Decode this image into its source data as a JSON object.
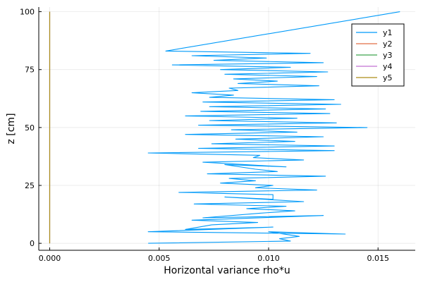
{
  "chart_data": {
    "type": "line",
    "xlabel": "Horizontal variance rho*u",
    "ylabel": "z [cm]",
    "xlim": [
      -0.0005,
      0.0167
    ],
    "ylim": [
      -3,
      102
    ],
    "xticks": [
      0.0,
      0.005,
      0.01,
      0.015
    ],
    "xtick_labels": [
      "0.000",
      "0.005",
      "0.010",
      "0.015"
    ],
    "yticks": [
      0,
      25,
      50,
      75,
      100
    ],
    "ytick_labels": [
      "0",
      "25",
      "50",
      "75",
      "100"
    ],
    "grid": true,
    "legend_position": "top-right",
    "series": [
      {
        "name": "y1",
        "color": "#009AF9",
        "x": [
          0.0045,
          0.011,
          0.0105,
          0.0114,
          0.01,
          0.0135,
          0.0045,
          0.0102,
          0.0062,
          0.0074,
          0.0095,
          0.0065,
          0.0125,
          0.007,
          0.0096,
          0.0112,
          0.009,
          0.0108,
          0.0066,
          0.0116,
          0.008,
          0.0102,
          0.0102,
          0.0059,
          0.0122,
          0.0094,
          0.0102,
          0.0078,
          0.0094,
          0.0082,
          0.0126,
          0.0072,
          0.0104,
          0.0094,
          0.008,
          0.0108,
          0.007,
          0.0116,
          0.0093,
          0.0096,
          0.0045,
          0.013,
          0.0068,
          0.013,
          0.0074,
          0.0112,
          0.0085,
          0.0125,
          0.0062,
          0.0113,
          0.0083,
          0.0145,
          0.0068,
          0.0131,
          0.0073,
          0.0113,
          0.0062,
          0.0128,
          0.0069,
          0.0126,
          0.0073,
          0.0133,
          0.007,
          0.013,
          0.0073,
          0.0084,
          0.0065,
          0.0086,
          0.0082,
          0.0123,
          0.0086,
          0.0104,
          0.0084,
          0.0122,
          0.008,
          0.0127,
          0.0078,
          0.011,
          0.0056,
          0.0125,
          0.0075,
          0.0099,
          0.0065,
          0.0119,
          0.0053,
          0.016
        ],
        "y": [
          0,
          1,
          2,
          3,
          5,
          4,
          5,
          7,
          6,
          8,
          9,
          10,
          12,
          11,
          13,
          14,
          15,
          16,
          17,
          18,
          20,
          19,
          21,
          22,
          23,
          24,
          25,
          26,
          27,
          28,
          29,
          30,
          31,
          32,
          34,
          33,
          35,
          36,
          37,
          38,
          39,
          40,
          41,
          42,
          43,
          44,
          45,
          46,
          47,
          48,
          49,
          50,
          51,
          52,
          53,
          54,
          55,
          56,
          57,
          58,
          59,
          60,
          61,
          62,
          63,
          64,
          65,
          66,
          67,
          68,
          69,
          70,
          71,
          72,
          73,
          74,
          75,
          76,
          77,
          78,
          79,
          80,
          81,
          82,
          83,
          100
        ]
      },
      {
        "name": "y2",
        "color": "#E26F46",
        "x": [
          0,
          0
        ],
        "y": [
          0,
          100
        ]
      },
      {
        "name": "y3",
        "color": "#3DA44D",
        "x": [
          0,
          0
        ],
        "y": [
          0,
          100
        ]
      },
      {
        "name": "y4",
        "color": "#C271D2",
        "x": [
          0,
          0
        ],
        "y": [
          0,
          100
        ]
      },
      {
        "name": "y5",
        "color": "#AC8E18",
        "x": [
          0,
          0
        ],
        "y": [
          0,
          100
        ]
      }
    ]
  }
}
